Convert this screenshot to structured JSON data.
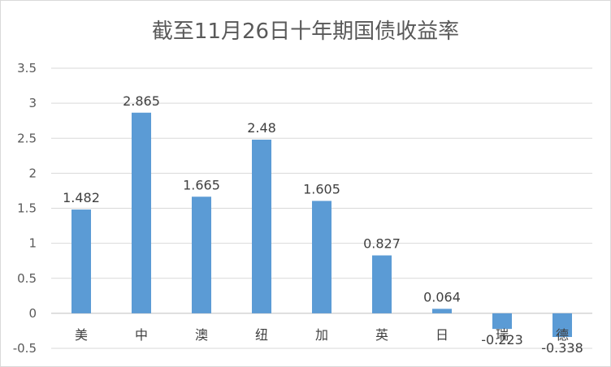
{
  "chart_data": {
    "type": "bar",
    "title": "截至11月26日十年期国债收益率",
    "categories": [
      "美",
      "中",
      "澳",
      "纽",
      "加",
      "英",
      "日",
      "瑞",
      "德"
    ],
    "values": [
      1.482,
      2.865,
      1.665,
      2.48,
      1.605,
      0.827,
      0.064,
      -0.223,
      -0.338
    ],
    "data_labels": [
      "1.482",
      "2.865",
      "1.665",
      "2.48",
      "1.605",
      "0.827",
      "0.064",
      "-0.223",
      "-0.338"
    ],
    "y_ticks": [
      "-0.5",
      "0",
      "0.5",
      "1",
      "1.5",
      "2",
      "2.5",
      "3",
      "3.5"
    ],
    "ylim": [
      -0.5,
      3.5
    ],
    "grid": true,
    "bar_color": "#5b9bd5"
  }
}
